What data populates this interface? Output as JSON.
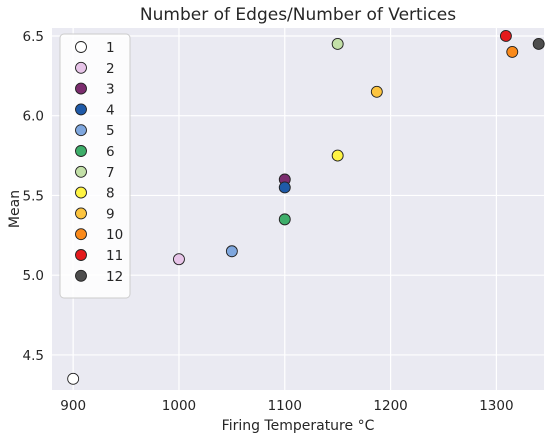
{
  "chart_data": {
    "type": "scatter",
    "title": "Number of Edges/Number of Vertices",
    "xlabel": "Firing Temperature °C",
    "ylabel": "Mean",
    "xlim": [
      880,
      1345
    ],
    "ylim": [
      4.28,
      6.55
    ],
    "xticks": [
      900,
      1000,
      1100,
      1200,
      1300
    ],
    "yticks": [
      4.5,
      5.0,
      5.5,
      6.0,
      6.5
    ],
    "ytick_labels": [
      "4.5",
      "5.0",
      "5.5",
      "6.0",
      "6.5"
    ],
    "grid": true,
    "background": "#EAEAF2",
    "legend_placement": "upper-left",
    "series": [
      {
        "name": "1",
        "color": "#FFFFFF",
        "points": [
          [
            900,
            4.35
          ]
        ]
      },
      {
        "name": "2",
        "color": "#E7C4E8",
        "points": [
          [
            1000,
            5.1
          ]
        ]
      },
      {
        "name": "3",
        "color": "#7B2C6E",
        "points": [
          [
            1100,
            5.6
          ]
        ]
      },
      {
        "name": "4",
        "color": "#1F5AA8",
        "points": [
          [
            1100,
            5.55
          ]
        ]
      },
      {
        "name": "5",
        "color": "#7FA7DE",
        "points": [
          [
            1050,
            5.15
          ]
        ]
      },
      {
        "name": "6",
        "color": "#3EAE6A",
        "points": [
          [
            1100,
            5.35
          ]
        ]
      },
      {
        "name": "7",
        "color": "#C3E0A8",
        "points": [
          [
            1150,
            6.45
          ]
        ]
      },
      {
        "name": "8",
        "color": "#FFF444",
        "points": [
          [
            1150,
            5.75
          ]
        ]
      },
      {
        "name": "9",
        "color": "#FCC43F",
        "points": [
          [
            1187,
            6.15
          ]
        ]
      },
      {
        "name": "10",
        "color": "#FA8A1B",
        "points": [
          [
            1315,
            6.4
          ]
        ]
      },
      {
        "name": "11",
        "color": "#E41A1C",
        "points": [
          [
            1309,
            6.5
          ]
        ]
      },
      {
        "name": "12",
        "color": "#4D4D4D",
        "points": [
          [
            1340,
            6.45
          ]
        ]
      }
    ]
  }
}
